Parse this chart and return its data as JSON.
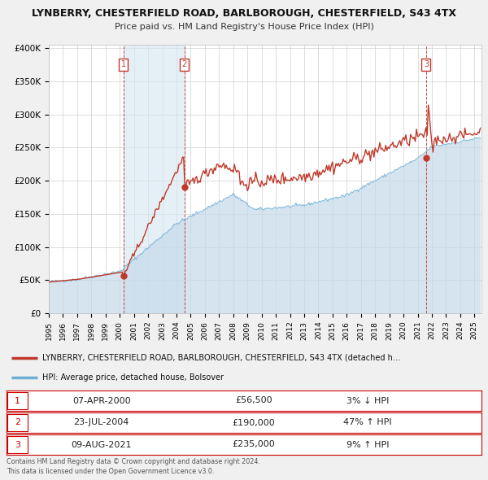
{
  "title": "LYNBERRY, CHESTERFIELD ROAD, BARLBOROUGH, CHESTERFIELD, S43 4TX",
  "subtitle": "Price paid vs. HM Land Registry's House Price Index (HPI)",
  "ylim": [
    0,
    400000
  ],
  "yticks": [
    0,
    50000,
    100000,
    150000,
    200000,
    250000,
    300000,
    350000,
    400000
  ],
  "ytick_labels": [
    "£0",
    "£50K",
    "£100K",
    "£150K",
    "£200K",
    "£250K",
    "£300K",
    "£350K",
    "£400K"
  ],
  "xlim_start": 1995.0,
  "xlim_end": 2025.5,
  "hpi_fill_color": "#c5d9ea",
  "hpi_line_color": "#6baed6",
  "price_color": "#c0392b",
  "marker_color": "#c0392b",
  "bg_color": "#f0f0f0",
  "plot_bg_color": "#ffffff",
  "grid_color": "#cccccc",
  "shade_color": "#d4e6f1",
  "sale_points": [
    {
      "date_num": 2000.25,
      "price": 56500,
      "label": "1"
    },
    {
      "date_num": 2004.55,
      "price": 190000,
      "label": "2"
    },
    {
      "date_num": 2021.6,
      "price": 235000,
      "label": "3"
    }
  ],
  "legend_entries": [
    {
      "label": "LYNBERRY, CHESTERFIELD ROAD, BARLBOROUGH, CHESTERFIELD, S43 4TX (detached h…",
      "color": "#c0392b"
    },
    {
      "label": "HPI: Average price, detached house, Bolsover",
      "color": "#6baed6"
    }
  ],
  "table_rows": [
    {
      "num": "1",
      "date": "07-APR-2000",
      "price": "£56,500",
      "pct": "3% ↓ HPI"
    },
    {
      "num": "2",
      "date": "23-JUL-2004",
      "price": "£190,000",
      "pct": "47% ↑ HPI"
    },
    {
      "num": "3",
      "date": "09-AUG-2021",
      "price": "£235,000",
      "pct": "9% ↑ HPI"
    }
  ],
  "footer_line1": "Contains HM Land Registry data © Crown copyright and database right 2024.",
  "footer_line2": "This data is licensed under the Open Government Licence v3.0.",
  "shaded_region": {
    "x_start": 2000.25,
    "x_end": 2004.55
  }
}
